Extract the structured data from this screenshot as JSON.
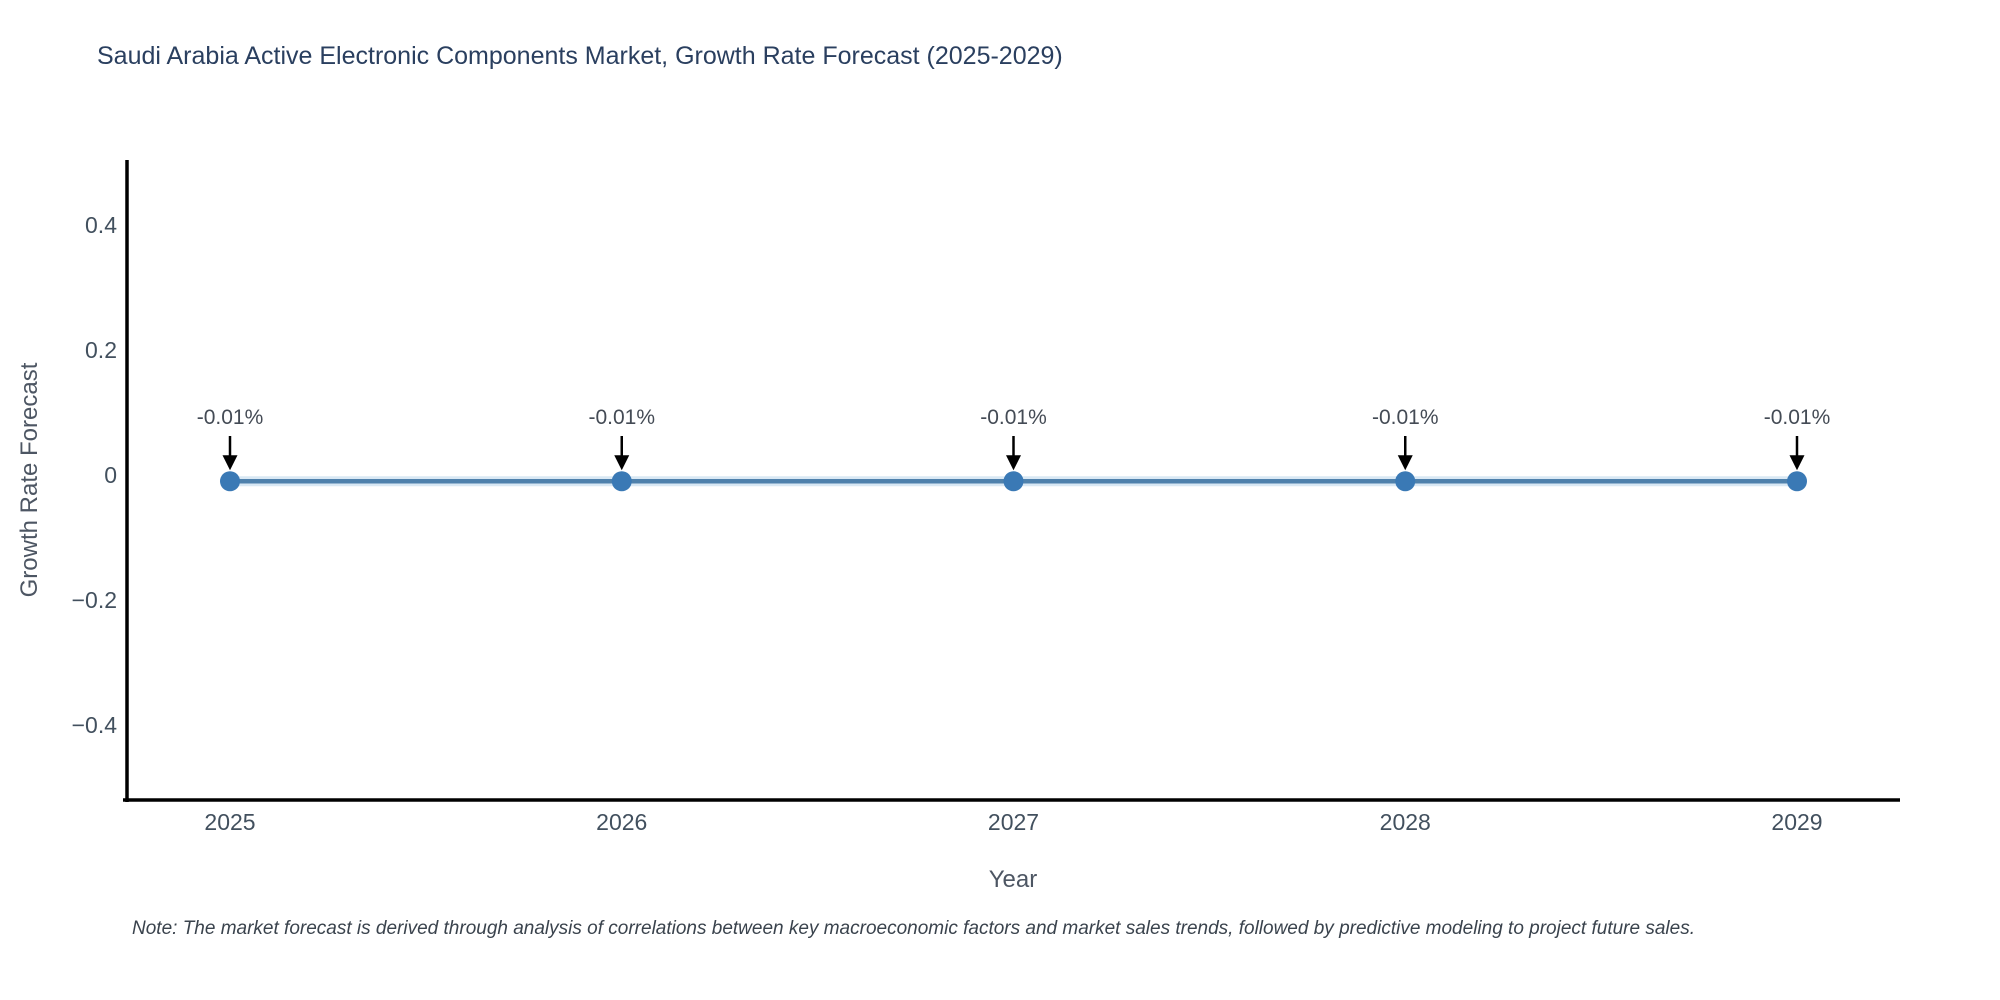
{
  "chart_data": {
    "type": "line",
    "title": "Saudi Arabia Active Electronic Components Market, Growth Rate Forecast (2025-2029)",
    "xlabel": "Year",
    "ylabel": "Growth Rate Forecast",
    "categories": [
      2025,
      2026,
      2027,
      2028,
      2029
    ],
    "x_tick_labels": [
      "2025",
      "2026",
      "2027",
      "2028",
      "2029"
    ],
    "series": [
      {
        "name": "Growth Rate Forecast",
        "values": [
          -0.01,
          -0.01,
          -0.01,
          -0.01,
          -0.01
        ]
      }
    ],
    "point_labels": [
      "-0.01%",
      "-0.01%",
      "-0.01%",
      "-0.01%",
      "-0.01%"
    ],
    "y_ticks": [
      0.4,
      0.2,
      0,
      -0.2,
      -0.4
    ],
    "y_tick_labels": [
      "0.4",
      "0.2",
      "0",
      "−0.2",
      "−0.4"
    ],
    "ylim": [
      -0.52,
      0.504
    ],
    "grid": false,
    "legend_position": "none",
    "annotations_have_arrows": true,
    "note": "Note: The market forecast is derived through analysis of correlations between key macroeconomic factors and market sales trends, followed by predictive modeling to project future sales.",
    "colors": {
      "background": "#ffffff",
      "title": "#2a3f5f",
      "axis_line": "#000000",
      "tick_label": "#42505e",
      "axis_title": "#4d5663",
      "line": "#4f81ac",
      "line_halo": "#d9e8f4",
      "marker": "#3a79b5",
      "annotation_text": "#444b55",
      "annotation_arrow": "#000000",
      "note_text": "#3a434d"
    }
  }
}
